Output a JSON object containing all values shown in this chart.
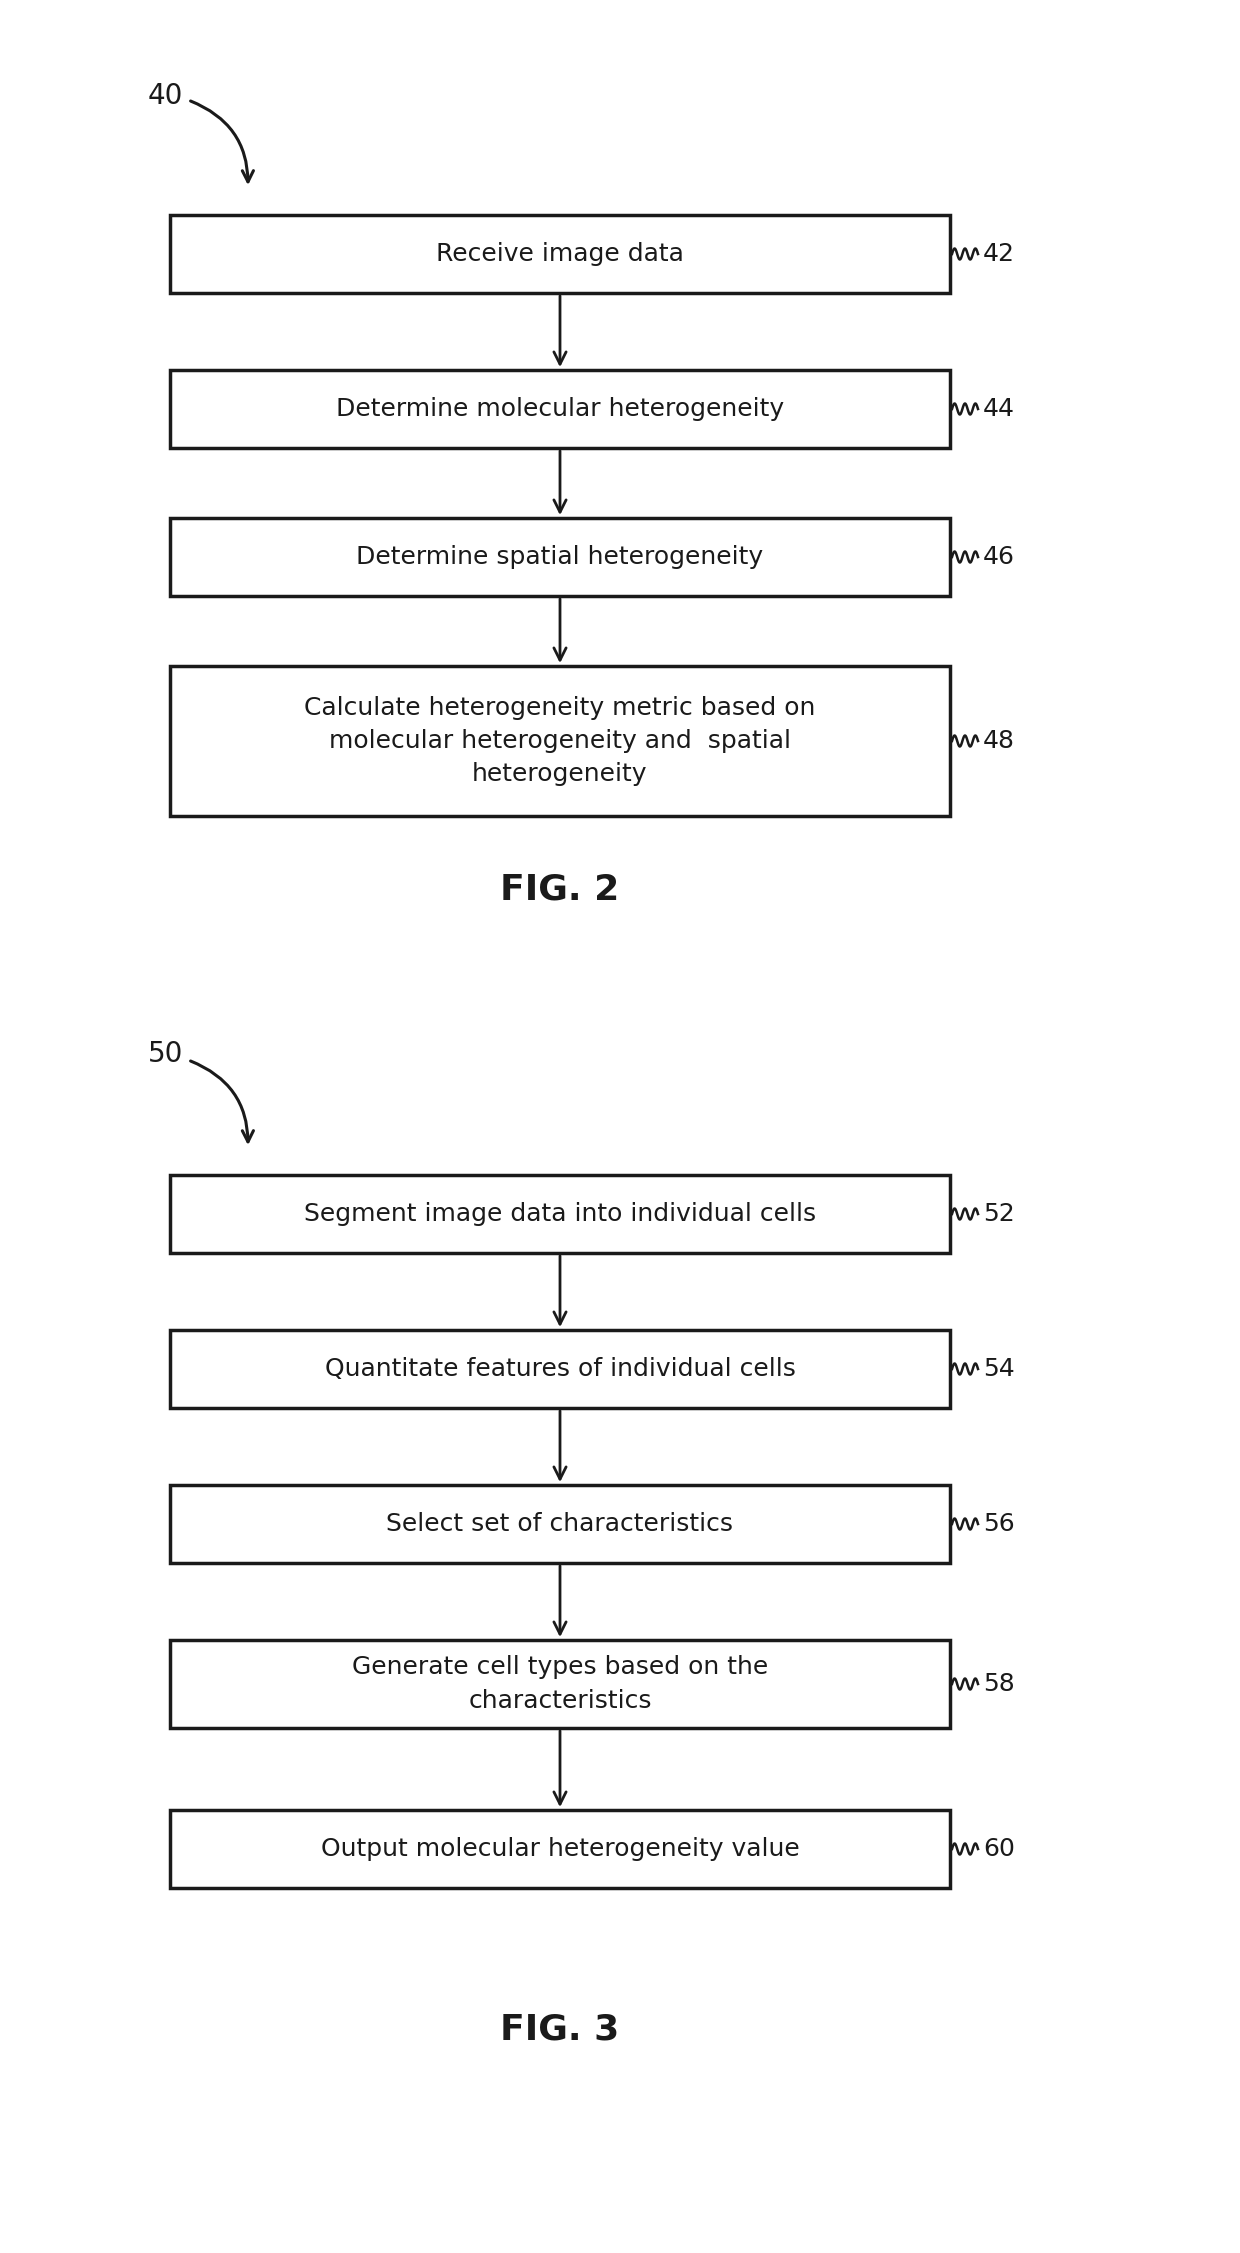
{
  "fig2": {
    "label": "40",
    "caption": "FIG. 2",
    "boxes": [
      {
        "id": "42",
        "text": "Receive image data",
        "lines": 1
      },
      {
        "id": "44",
        "text": "Determine molecular heterogeneity",
        "lines": 1
      },
      {
        "id": "46",
        "text": "Determine spatial heterogeneity",
        "lines": 1
      },
      {
        "id": "48",
        "text": "Calculate heterogeneity metric based on\nmolecular heterogeneity and  spatial\nheterogeneity",
        "lines": 3
      }
    ]
  },
  "fig3": {
    "label": "50",
    "caption": "FIG. 3",
    "boxes": [
      {
        "id": "52",
        "text": "Segment image data into individual cells",
        "lines": 1
      },
      {
        "id": "54",
        "text": "Quantitate features of individual cells",
        "lines": 1
      },
      {
        "id": "56",
        "text": "Select set of characteristics",
        "lines": 1
      },
      {
        "id": "58",
        "text": "Generate cell types based on the\ncharacteristics",
        "lines": 2
      },
      {
        "id": "60",
        "text": "Output molecular heterogeneity value",
        "lines": 1
      }
    ]
  },
  "bg_color": "#ffffff",
  "box_edge_color": "#1a1a1a",
  "text_color": "#1a1a1a",
  "arrow_color": "#1a1a1a",
  "font_size": 18,
  "caption_font_size": 26,
  "label_font_size": 20,
  "ref_font_size": 18
}
